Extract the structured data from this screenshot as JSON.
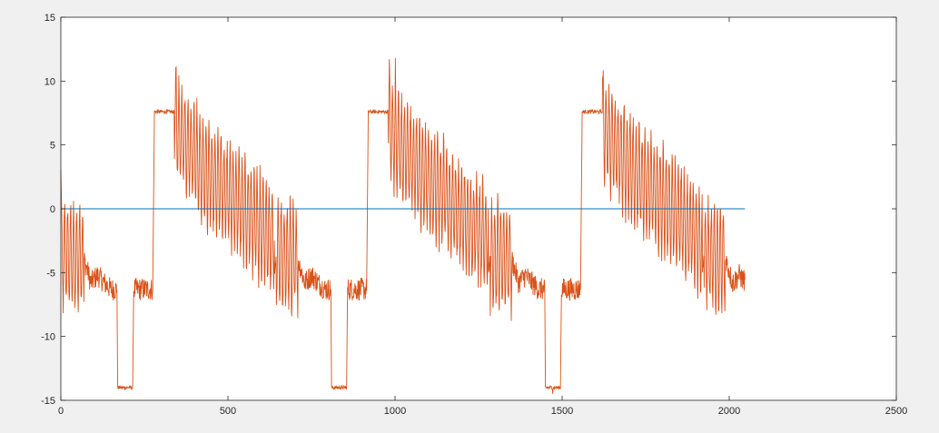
{
  "chart_data": {
    "type": "line",
    "title": "",
    "xlabel": "",
    "ylabel": "",
    "xlim": [
      0,
      2500
    ],
    "ylim": [
      -15,
      15
    ],
    "x_ticks": [
      0,
      500,
      1000,
      1500,
      2000,
      2500
    ],
    "y_ticks": [
      -15,
      -10,
      -5,
      0,
      5,
      10,
      15
    ],
    "x_tick_labels": [
      "0",
      "500",
      "1000",
      "1500",
      "2000",
      "2500"
    ],
    "y_tick_labels": [
      "-15",
      "-10",
      "-5",
      "0",
      "5",
      "10",
      "15"
    ],
    "grid": false,
    "box": true,
    "series": [
      {
        "color": "#0072bd",
        "x": [
          0,
          2047
        ],
        "y": [
          0,
          0
        ]
      },
      {
        "color": "#d95319",
        "cycle_period": 640,
        "num_samples": 2048,
        "oscillation": {
          "period": 9,
          "amplitude": [
            1.5,
            5.0
          ]
        },
        "envelope_points": [
          [
            0,
            3.0
          ],
          [
            5,
            -3.5
          ],
          [
            70,
            -4.0
          ],
          [
            90,
            -5.8
          ],
          [
            110,
            -5.2
          ],
          [
            130,
            -5.8
          ],
          [
            150,
            -6.3
          ],
          [
            168,
            -6.3
          ],
          [
            170,
            -14.0
          ],
          [
            215,
            -14.0
          ],
          [
            218,
            -6.3
          ],
          [
            275,
            -6.3
          ],
          [
            280,
            7.6
          ],
          [
            340,
            7.6
          ],
          [
            350,
            6.0
          ],
          [
            430,
            3.0
          ],
          [
            510,
            1.0
          ],
          [
            580,
            -1.0
          ],
          [
            640,
            -2.5
          ],
          [
            715,
            -3.5
          ],
          [
            725,
            -5.0
          ]
        ],
        "max_value": 11.8,
        "min_value": -14.5
      }
    ]
  }
}
